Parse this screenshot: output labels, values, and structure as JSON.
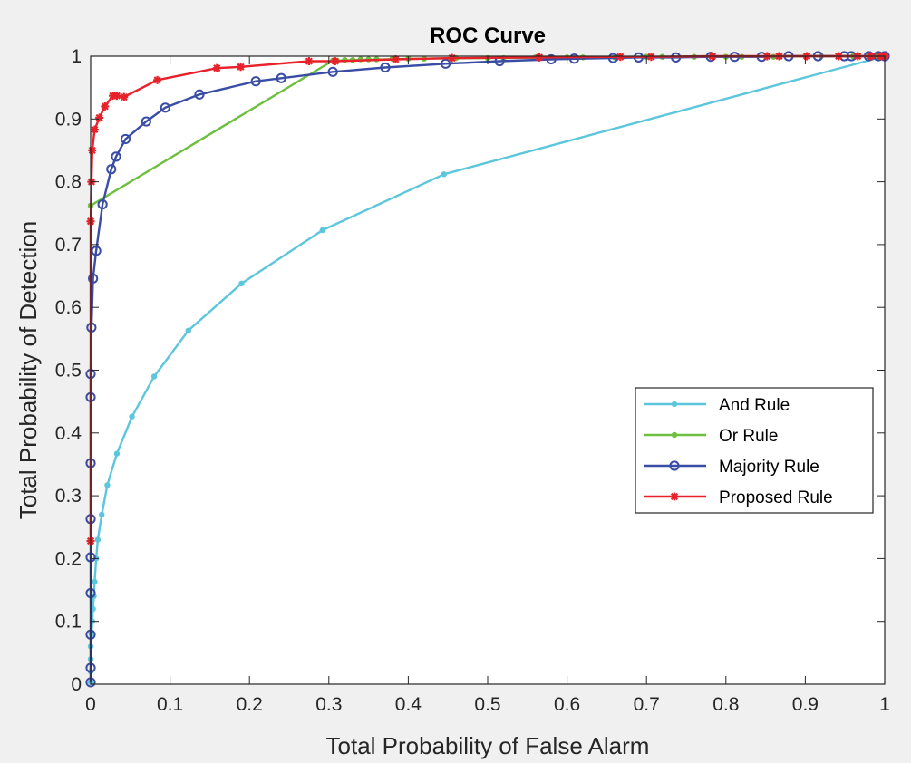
{
  "chart_data": {
    "type": "line",
    "title": "ROC Curve",
    "xlabel": "Total Probability of False Alarm",
    "ylabel": "Total Probability of Detection",
    "xlim": [
      0,
      1
    ],
    "ylim": [
      0,
      1
    ],
    "xticks": [
      0,
      0.1,
      0.2,
      0.3,
      0.4,
      0.5,
      0.6,
      0.7,
      0.8,
      0.9,
      1
    ],
    "yticks": [
      0,
      0.1,
      0.2,
      0.3,
      0.4,
      0.5,
      0.6,
      0.7,
      0.8,
      0.9,
      1
    ],
    "xtick_labels": [
      "0",
      "0.1",
      "0.2",
      "0.3",
      "0.4",
      "0.5",
      "0.6",
      "0.7",
      "0.8",
      "0.9",
      "1"
    ],
    "ytick_labels": [
      "0",
      "0.1",
      "0.2",
      "0.3",
      "0.4",
      "0.5",
      "0.6",
      "0.7",
      "0.8",
      "0.9",
      "1"
    ],
    "grid": false,
    "legend_position": "center-right",
    "series": [
      {
        "name": "And Rule",
        "color": "#5bc6dc",
        "marker": "dot",
        "x": [
          0,
          0,
          0,
          0,
          0.001,
          0.002,
          0.003,
          0.004,
          0.005,
          0.007,
          0.009,
          0.014,
          0.021,
          0.033,
          0.052,
          0.08,
          0.123,
          0.19,
          0.292,
          0.445,
          1
        ],
        "y": [
          0.003,
          0.02,
          0.04,
          0.06,
          0.08,
          0.1,
          0.12,
          0.14,
          0.163,
          0.2,
          0.23,
          0.27,
          0.317,
          0.367,
          0.426,
          0.49,
          0.563,
          0.638,
          0.723,
          0.812,
          1
        ]
      },
      {
        "name": "Or Rule",
        "color": "#6cbf3f",
        "marker": "dot",
        "x": [
          0,
          0.305,
          0.4,
          0.5,
          0.6,
          0.7,
          0.8,
          0.9,
          1
        ],
        "y": [
          0.762,
          0.993,
          0.996,
          0.997,
          0.998,
          0.999,
          0.999,
          1,
          1
        ],
        "dense_x": [
          0.31,
          0.32,
          0.33,
          0.34,
          0.35,
          0.36,
          0.38,
          0.42,
          0.46,
          0.52,
          0.56,
          0.62,
          0.66,
          0.72,
          0.76,
          0.82,
          0.86,
          0.92,
          0.96,
          0.98,
          0.99,
          1
        ],
        "dense_y": [
          0.993,
          0.994,
          0.994,
          0.995,
          0.995,
          0.995,
          0.996,
          0.996,
          0.997,
          0.997,
          0.998,
          0.998,
          0.998,
          0.999,
          0.999,
          0.999,
          0.999,
          1,
          1,
          1,
          1,
          1
        ]
      },
      {
        "name": "Majority Rule",
        "color": "#3a4da5",
        "marker": "circle",
        "x": [
          0,
          0,
          0,
          0,
          0,
          0,
          0,
          0,
          0,
          0.001,
          0.003,
          0.007,
          0.015,
          0.026,
          0.032,
          0.044,
          0.07,
          0.094,
          0.137,
          0.208,
          0.24,
          0.305,
          0.371,
          0.447,
          0.515,
          0.58,
          0.609,
          0.658,
          0.69,
          0.737,
          0.781,
          0.811,
          0.845,
          0.879,
          0.916,
          0.949,
          0.958,
          0.98,
          0.992,
          1
        ],
        "y": [
          0.003,
          0.026,
          0.079,
          0.145,
          0.202,
          0.263,
          0.352,
          0.457,
          0.494,
          0.568,
          0.646,
          0.69,
          0.764,
          0.82,
          0.84,
          0.868,
          0.896,
          0.918,
          0.939,
          0.96,
          0.965,
          0.975,
          0.982,
          0.988,
          0.992,
          0.995,
          0.996,
          0.997,
          0.998,
          0.998,
          0.999,
          0.999,
          0.999,
          1,
          1,
          1,
          1,
          1,
          1,
          1
        ]
      },
      {
        "name": "Proposed Rule",
        "color": "#e8212a",
        "marker": "star",
        "x": [
          0,
          0,
          0.001,
          0.002,
          0.005,
          0.011,
          0.018,
          0.028,
          0.033,
          0.042,
          0.084,
          0.159,
          0.189,
          0.275,
          0.308,
          0.384,
          0.455,
          0.565,
          0.667,
          0.706,
          0.783,
          0.852,
          0.867,
          0.902,
          0.942,
          0.966,
          0.983,
          0.995,
          1
        ],
        "y": [
          0.228,
          0.737,
          0.8,
          0.85,
          0.883,
          0.902,
          0.92,
          0.937,
          0.937,
          0.935,
          0.962,
          0.981,
          0.983,
          0.992,
          0.992,
          0.995,
          0.997,
          0.998,
          0.999,
          0.999,
          1,
          1,
          1,
          1,
          1,
          1,
          1,
          1,
          1
        ]
      }
    ]
  }
}
